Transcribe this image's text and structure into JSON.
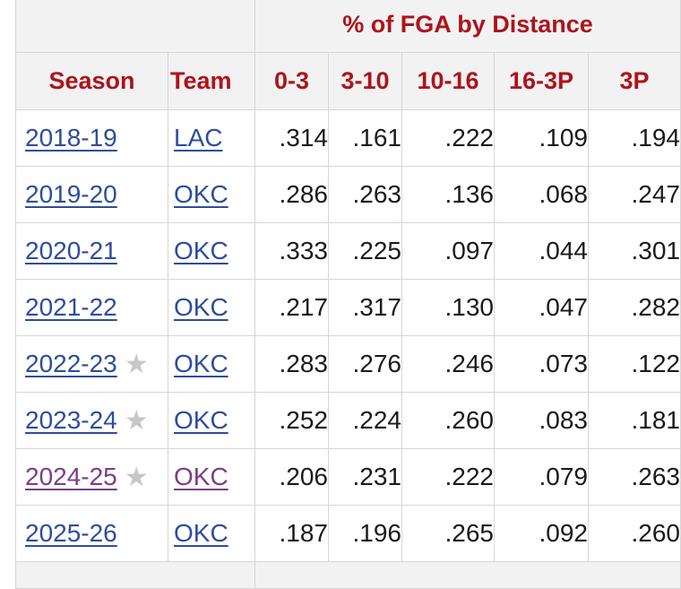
{
  "table": {
    "group_header": "% of FGA by Distance",
    "columns": {
      "season": "Season",
      "team": "Team",
      "d0_3": "0-3",
      "d3_10": "3-10",
      "d10_16": "10-16",
      "d16_3p": "16-3P",
      "three": "3P"
    },
    "rows": [
      {
        "season": "2018-19",
        "star": "",
        "team": "LAC",
        "d0_3": ".314",
        "d3_10": ".161",
        "d10_16": ".222",
        "d16_3p": ".109",
        "three": ".194",
        "visited": false
      },
      {
        "season": "2019-20",
        "star": "",
        "team": "OKC",
        "d0_3": ".286",
        "d3_10": ".263",
        "d10_16": ".136",
        "d16_3p": ".068",
        "three": ".247",
        "visited": false
      },
      {
        "season": "2020-21",
        "star": "",
        "team": "OKC",
        "d0_3": ".333",
        "d3_10": ".225",
        "d10_16": ".097",
        "d16_3p": ".044",
        "three": ".301",
        "visited": false
      },
      {
        "season": "2021-22",
        "star": "",
        "team": "OKC",
        "d0_3": ".217",
        "d3_10": ".317",
        "d10_16": ".130",
        "d16_3p": ".047",
        "three": ".282",
        "visited": false
      },
      {
        "season": "2022-23",
        "star": "★",
        "team": "OKC",
        "d0_3": ".283",
        "d3_10": ".276",
        "d10_16": ".246",
        "d16_3p": ".073",
        "three": ".122",
        "visited": false
      },
      {
        "season": "2023-24",
        "star": "★",
        "team": "OKC",
        "d0_3": ".252",
        "d3_10": ".224",
        "d10_16": ".260",
        "d16_3p": ".083",
        "three": ".181",
        "visited": false
      },
      {
        "season": "2024-25",
        "star": "★",
        "team": "OKC",
        "d0_3": ".206",
        "d3_10": ".231",
        "d10_16": ".222",
        "d16_3p": ".079",
        "three": ".263",
        "visited": true
      },
      {
        "season": "2025-26",
        "star": "",
        "team": "OKC",
        "d0_3": ".187",
        "d3_10": ".196",
        "d10_16": ".265",
        "d16_3p": ".092",
        "three": ".260",
        "visited": false
      }
    ]
  },
  "colors": {
    "header_text": "#b0121b",
    "link": "#2d4d9e",
    "visited_link": "#7b3d87",
    "header_bg": "#f2f2f2",
    "star": "#c7c7c7"
  }
}
